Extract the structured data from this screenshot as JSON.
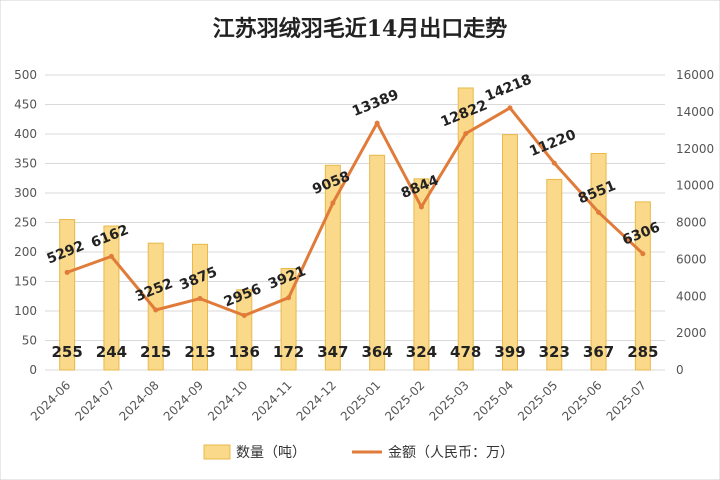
{
  "chart_data": {
    "type": "bar+line",
    "title": "江苏羽绒羽毛近14月出口走势",
    "categories": [
      "2024-06",
      "2024-07",
      "2024-08",
      "2024-09",
      "2024-10",
      "2024-11",
      "2024-12",
      "2025-01",
      "2025-02",
      "2025-03",
      "2025-04",
      "2025-05",
      "2025-06",
      "2025-07"
    ],
    "series": [
      {
        "name": "数量（吨）",
        "type": "bar",
        "axis": "left",
        "values": [
          255,
          244,
          215,
          213,
          136,
          172,
          347,
          364,
          324,
          478,
          399,
          323,
          367,
          285
        ]
      },
      {
        "name": "金额（人民币：万）",
        "type": "line",
        "axis": "right",
        "values": [
          5292,
          6162,
          3252,
          3875,
          2956,
          3921,
          9058,
          13389,
          8844,
          12822,
          14218,
          11220,
          8551,
          6306
        ]
      }
    ],
    "y_left": {
      "min": 0,
      "max": 500,
      "ticks": [
        "0",
        "50",
        "100",
        "150",
        "200",
        "250",
        "300",
        "350",
        "400",
        "450",
        "500"
      ]
    },
    "y_right": {
      "min": 0,
      "max": 16000,
      "ticks": [
        "0",
        "2000",
        "4000",
        "6000",
        "8000",
        "10000",
        "12000",
        "14000",
        "16000"
      ]
    },
    "grid": true,
    "legend": "bottom",
    "colors": {
      "bar_fill": "#FBD98A",
      "bar_stroke": "#E8B94A",
      "line": "#E07B39",
      "grid": "#D9D9D9"
    }
  }
}
